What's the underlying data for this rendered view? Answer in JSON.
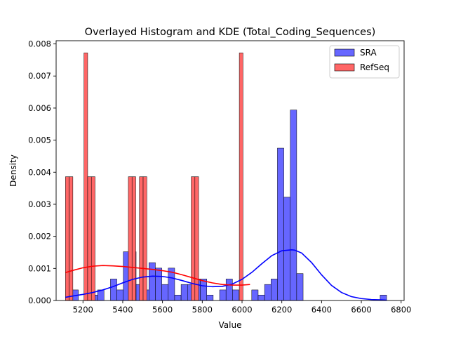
{
  "chart_data": {
    "type": "bar",
    "title": "Overlayed Histogram and KDE (Total_Coding_Sequences)",
    "xlabel": "Value",
    "ylabel": "Density",
    "xlim": [
      5065,
      6815
    ],
    "ylim": [
      0,
      0.0081
    ],
    "x_ticks": [
      5200,
      5400,
      5600,
      5800,
      6000,
      6200,
      6400,
      6600,
      6800
    ],
    "y_ticks": [
      0.0,
      0.001,
      0.002,
      0.003,
      0.004,
      0.005,
      0.006,
      0.007,
      0.008
    ],
    "grid": false,
    "legend_position": "top-right",
    "series": [
      {
        "name": "SRA",
        "color": "#0000ff",
        "bin_start": 5112,
        "bin_width": 32.3,
        "values": [
          0.00033,
          0.00033,
          0.0,
          0.00017,
          0.00017,
          0.00033,
          0.0,
          0.00067,
          0.00033,
          0.00152,
          0.00152,
          0.0005,
          0.00033,
          0.00118,
          0.00101,
          0.0005,
          0.00101,
          0.00017,
          0.0005,
          0.0005,
          0.00067,
          0.00067,
          0.00017,
          0.0,
          0.00033,
          0.00067,
          0.00033,
          0.0,
          0.0,
          0.00033,
          0.00017,
          0.0005,
          0.00067,
          0.00475,
          0.00322,
          0.00594,
          0.00084,
          0.0,
          0.0,
          0.0,
          0.0,
          0.0,
          0.0,
          0.0,
          0.0,
          0.0,
          0.0,
          0.0,
          0.0,
          0.00017
        ]
      },
      {
        "name": "RefSeq",
        "color": "#ff0000",
        "bin_start": 5112,
        "bin_width": 18.6,
        "values": [
          0.00386,
          0.00386,
          0.0,
          0.0,
          0.0,
          0.00772,
          0.00386,
          0.00386,
          0.0,
          0.0,
          0.0,
          0.0,
          0.0,
          0.0,
          0.0,
          0.0,
          0.0,
          0.00386,
          0.00386,
          0.0,
          0.00386,
          0.00386,
          0.0,
          0.0,
          0.0,
          0.0,
          0.0,
          0.0,
          0.0,
          0.0,
          0.0,
          0.0,
          0.0,
          0.0,
          0.00386,
          0.00386,
          0.0,
          0.0,
          0.0,
          0.0,
          0.0,
          0.0,
          0.0,
          0.0,
          0.0,
          0.0,
          0.0,
          0.00772,
          0.0,
          0.0
        ]
      }
    ],
    "kde": [
      {
        "name": "SRA",
        "color": "#0000ff",
        "x": [
          5112,
          5150,
          5200,
          5250,
          5300,
          5350,
          5400,
          5450,
          5500,
          5550,
          5600,
          5650,
          5700,
          5750,
          5800,
          5850,
          5900,
          5950,
          6000,
          6050,
          6100,
          6150,
          6200,
          6250,
          6265,
          6300,
          6350,
          6400,
          6450,
          6500,
          6550,
          6600,
          6650,
          6700,
          6728
        ],
        "y": [
          0.0001,
          0.00014,
          0.00019,
          0.00025,
          0.00033,
          0.00043,
          0.00055,
          0.00066,
          0.00073,
          0.00076,
          0.00075,
          0.0007,
          0.00062,
          0.00053,
          0.00046,
          0.00043,
          0.00044,
          0.00051,
          0.00066,
          0.00088,
          0.00115,
          0.0014,
          0.00155,
          0.00158,
          0.00157,
          0.00148,
          0.00118,
          0.0008,
          0.00047,
          0.00025,
          0.00012,
          6e-05,
          3e-05,
          2e-05,
          1e-05
        ]
      },
      {
        "name": "RefSeq",
        "color": "#ff0000",
        "x": [
          5112,
          5150,
          5200,
          5250,
          5300,
          5350,
          5400,
          5450,
          5500,
          5550,
          5600,
          5650,
          5700,
          5750,
          5800,
          5850,
          5900,
          5950,
          6000,
          6040
        ],
        "y": [
          0.00087,
          0.00094,
          0.00102,
          0.00107,
          0.00109,
          0.00108,
          0.00106,
          0.00103,
          0.001,
          0.00097,
          0.00093,
          0.00088,
          0.0008,
          0.00071,
          0.00062,
          0.00055,
          0.0005,
          0.00048,
          0.00048,
          0.0005
        ]
      }
    ]
  }
}
